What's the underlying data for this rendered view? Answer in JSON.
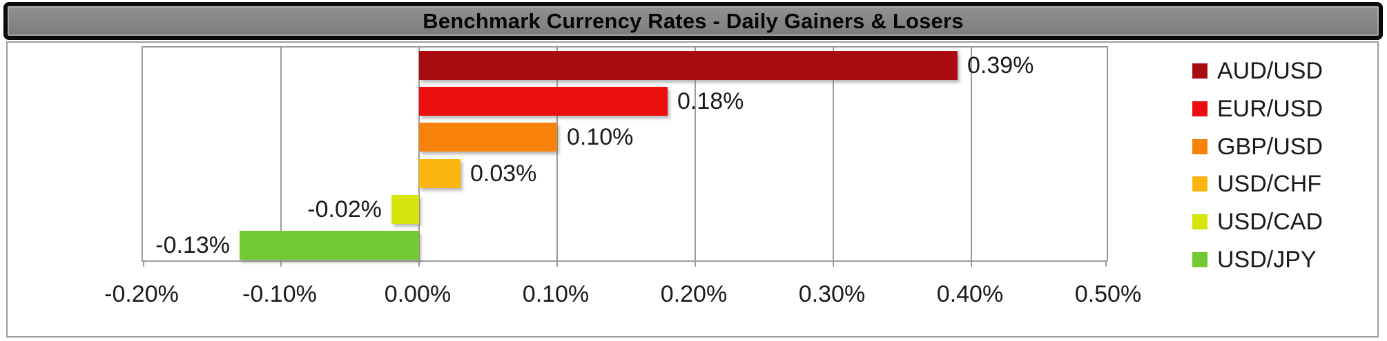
{
  "title": "Benchmark Currency Rates - Daily Gainers & Losers",
  "chart_data": {
    "type": "bar",
    "orientation": "horizontal",
    "title": "Benchmark Currency Rates - Daily Gainers & Losers",
    "series": [
      {
        "name": "AUD/USD",
        "value": 0.39,
        "label": "0.39%",
        "color": "#A80C10"
      },
      {
        "name": "EUR/USD",
        "value": 0.18,
        "label": "0.18%",
        "color": "#EC0E0E"
      },
      {
        "name": "GBP/USD",
        "value": 0.1,
        "label": "0.10%",
        "color": "#F8810C"
      },
      {
        "name": "USD/CHF",
        "value": 0.03,
        "label": "0.03%",
        "color": "#FBB50F"
      },
      {
        "name": "USD/CAD",
        "value": -0.02,
        "label": "-0.02%",
        "color": "#D6E60D"
      },
      {
        "name": "USD/JPY",
        "value": -0.13,
        "label": "-0.13%",
        "color": "#71CA32"
      }
    ],
    "x_axis": {
      "min": -0.2,
      "max": 0.5,
      "step": 0.1,
      "tick_labels": [
        "-0.20%",
        "-0.10%",
        "0.00%",
        "0.10%",
        "0.20%",
        "0.30%",
        "0.40%",
        "0.50%"
      ]
    },
    "legend_position": "right",
    "grid": true,
    "frame_colors": {
      "banner_background": "#868686",
      "banner_border": "#0A0A0A",
      "gridline": "#9C9C9C",
      "plot_background": "#FFFFFF",
      "label_text": "#1A1A1A"
    }
  }
}
